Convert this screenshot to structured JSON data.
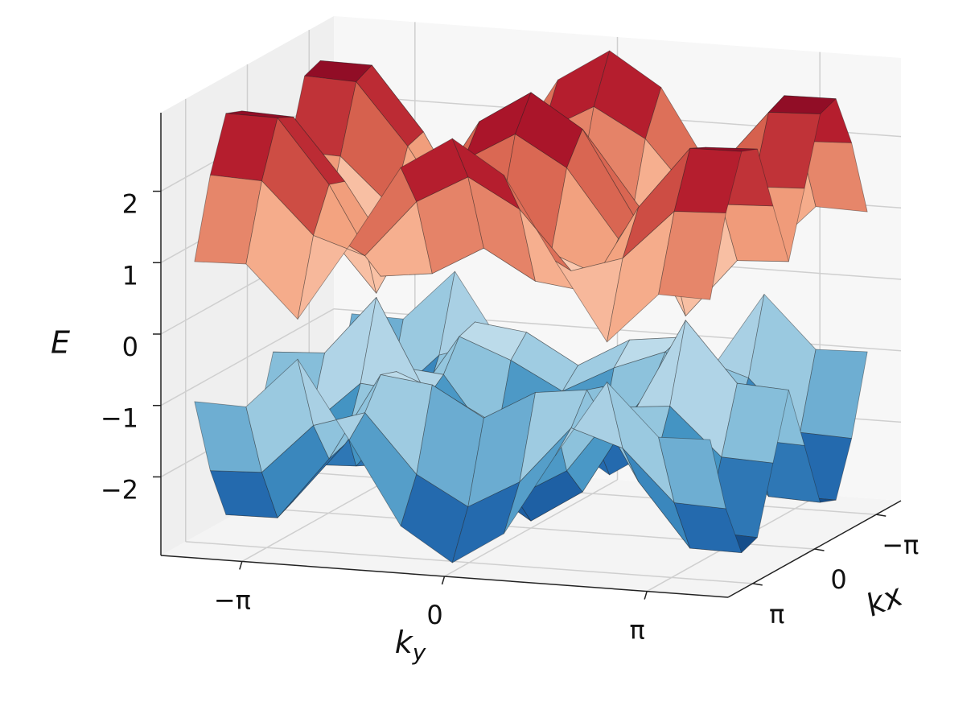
{
  "chart_data": {
    "type": "surface",
    "zlabel": "E",
    "ylabel": [
      "k",
      "y"
    ],
    "xlabel": "kx",
    "x": [
      -4,
      -3.2,
      -2.4,
      -1.6,
      -0.8,
      0,
      0.8,
      1.6,
      2.4,
      3.2,
      4
    ],
    "y": [
      -4,
      -3.2,
      -2.4,
      -1.6,
      -0.8,
      0,
      0.8,
      1.6,
      2.4,
      3.2,
      4
    ],
    "xlim": [
      -4.4,
      4.4
    ],
    "ylim": [
      -4.4,
      4.4
    ],
    "zlim": [
      -3.1,
      3.1
    ],
    "xticks": [
      {
        "value": -3.14159,
        "label": "−π"
      },
      0,
      {
        "value": 3.14159,
        "label": "π"
      }
    ],
    "yticks": [
      {
        "value": -3.14159,
        "label": "−π"
      },
      0,
      {
        "value": 3.14159,
        "label": "π"
      }
    ],
    "zticks": [
      {
        "value": -2,
        "label": "−2"
      },
      {
        "value": -1,
        "label": "−1"
      },
      0,
      1,
      2
    ],
    "grid": true,
    "colormap": [
      "#053061",
      "#2166ac",
      "#4393c3",
      "#92c5de",
      "#d1e5f0",
      "#f7f7f7",
      "#fddbc7",
      "#f4a582",
      "#d6604d",
      "#b2182b",
      "#67001f"
    ],
    "series": [
      {
        "values": [
          [
            0.98,
            2.07,
            2.81,
            2.72,
            1.8,
            0.9,
            1.8,
            2.72,
            2.81,
            2.07,
            0.98
          ],
          [
            1,
            2.04,
            2.8,
            2.69,
            1.77,
            0.86,
            1.77,
            2.69,
            2.8,
            2.04,
            1
          ],
          [
            0.28,
            1.33,
            1.92,
            1.84,
            1.11,
            0.03,
            1.11,
            1.84,
            1.92,
            1.33,
            0.28
          ],
          [
            1.36,
            1.1,
            0.69,
            0.77,
            1.18,
            1.37,
            1.18,
            0.77,
            0.69,
            1.1,
            1.36
          ],
          [
            2.51,
            1.91,
            0.78,
            1.05,
            2.12,
            2.54,
            2.12,
            1.05,
            0.78,
            1.91,
            2.51
          ],
          [
            2.97,
            2.31,
            1.19,
            1.43,
            2.54,
            3,
            2.54,
            1.43,
            1.19,
            2.31,
            2.97
          ],
          [
            2.51,
            1.91,
            0.78,
            1.05,
            2.12,
            2.54,
            2.12,
            1.05,
            0.78,
            1.91,
            2.51
          ],
          [
            1.36,
            1.1,
            0.69,
            0.77,
            1.18,
            1.37,
            1.18,
            0.77,
            0.69,
            1.1,
            1.36
          ],
          [
            0.28,
            1.33,
            1.92,
            1.84,
            1.11,
            0.03,
            1.11,
            1.84,
            1.92,
            1.33,
            0.28
          ],
          [
            1,
            2.04,
            2.8,
            2.69,
            1.77,
            0.86,
            1.77,
            2.69,
            2.8,
            2.04,
            1
          ],
          [
            0.98,
            2.07,
            2.81,
            2.72,
            1.8,
            0.9,
            1.8,
            2.72,
            2.81,
            2.07,
            0.98
          ]
        ]
      },
      {
        "values": [
          [
            -0.98,
            -2.07,
            -2.81,
            -2.72,
            -1.8,
            -0.9,
            -1.8,
            -2.72,
            -2.81,
            -2.07,
            -0.98
          ],
          [
            -1,
            -2.04,
            -2.8,
            -2.69,
            -1.77,
            -0.86,
            -1.77,
            -2.69,
            -2.8,
            -2.04,
            -1
          ],
          [
            -0.28,
            -1.33,
            -1.92,
            -1.84,
            -1.11,
            -0.03,
            -1.11,
            -1.84,
            -1.92,
            -1.33,
            -0.28
          ],
          [
            -1.36,
            -1.1,
            -0.69,
            -0.77,
            -1.18,
            -1.37,
            -1.18,
            -0.77,
            -0.69,
            -1.1,
            -1.36
          ],
          [
            -2.51,
            -1.91,
            -0.78,
            -1.05,
            -2.12,
            -2.54,
            -2.12,
            -1.05,
            -0.78,
            -1.91,
            -2.51
          ],
          [
            -2.97,
            -2.31,
            -1.19,
            -1.43,
            -2.54,
            -3,
            -2.54,
            -1.43,
            -1.19,
            -2.31,
            -2.97
          ],
          [
            -2.51,
            -1.91,
            -0.78,
            -1.05,
            -2.12,
            -2.54,
            -2.12,
            -1.05,
            -0.78,
            -1.91,
            -2.51
          ],
          [
            -1.36,
            -1.1,
            -0.69,
            -0.77,
            -1.18,
            -1.37,
            -1.18,
            -0.77,
            -0.69,
            -1.1,
            -1.36
          ],
          [
            -0.28,
            -1.33,
            -1.92,
            -1.84,
            -1.11,
            -0.03,
            -1.11,
            -1.84,
            -1.92,
            -1.33,
            -0.28
          ],
          [
            -1,
            -2.04,
            -2.8,
            -2.69,
            -1.77,
            -0.86,
            -1.77,
            -2.69,
            -2.8,
            -2.04,
            -1
          ],
          [
            -0.98,
            -2.07,
            -2.81,
            -2.72,
            -1.8,
            -0.9,
            -1.8,
            -2.72,
            -2.81,
            -2.07,
            -0.98
          ]
        ]
      }
    ]
  }
}
